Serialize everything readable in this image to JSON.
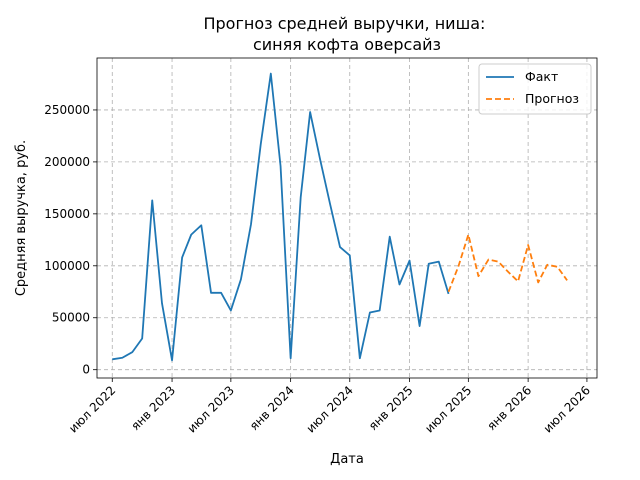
{
  "chart_data": {
    "type": "line",
    "title": "Прогноз средней выручки, ниша:\nсиняя кофта оверсайз",
    "title_lines": [
      "Прогноз средней выручки, ниша:",
      "синяя кофта оверсайз"
    ],
    "xlabel": "Дата",
    "ylabel": "Средняя выручка, руб.",
    "grid": true,
    "legend_position": "top-right",
    "xlim": [
      "2022-05-15",
      "2026-08-01"
    ],
    "ylim": [
      -8000,
      300000
    ],
    "x_ticks": [
      {
        "date": "2022-07-01",
        "label": "июл 2022"
      },
      {
        "date": "2023-01-01",
        "label": "янв 2023"
      },
      {
        "date": "2023-07-01",
        "label": "июл 2023"
      },
      {
        "date": "2024-01-01",
        "label": "янв 2024"
      },
      {
        "date": "2024-07-01",
        "label": "июл 2024"
      },
      {
        "date": "2025-01-01",
        "label": "янв 2025"
      },
      {
        "date": "2025-07-01",
        "label": "июл 2025"
      },
      {
        "date": "2026-01-01",
        "label": "янв 2026"
      },
      {
        "date": "2026-07-01",
        "label": "июл 2026"
      }
    ],
    "y_ticks": [
      0,
      50000,
      100000,
      150000,
      200000,
      250000
    ],
    "series": [
      {
        "name": "Факт",
        "color": "#1f77b4",
        "style": "solid",
        "points": [
          [
            "2022-07-01",
            10000
          ],
          [
            "2022-08-01",
            11500
          ],
          [
            "2022-09-01",
            17000
          ],
          [
            "2022-10-01",
            30000
          ],
          [
            "2022-11-01",
            163000
          ],
          [
            "2022-12-01",
            64000
          ],
          [
            "2023-01-01",
            9000
          ],
          [
            "2023-02-01",
            108000
          ],
          [
            "2023-03-01",
            130000
          ],
          [
            "2023-04-01",
            139000
          ],
          [
            "2023-05-01",
            74000
          ],
          [
            "2023-06-01",
            74000
          ],
          [
            "2023-07-01",
            57000
          ],
          [
            "2023-08-01",
            87000
          ],
          [
            "2023-09-01",
            140000
          ],
          [
            "2023-10-01",
            217000
          ],
          [
            "2023-11-01",
            285000
          ],
          [
            "2023-12-01",
            196000
          ],
          [
            "2024-01-01",
            11000
          ],
          [
            "2024-02-01",
            166000
          ],
          [
            "2024-03-01",
            248000
          ],
          [
            "2024-04-01",
            202000
          ],
          [
            "2024-05-01",
            160000
          ],
          [
            "2024-06-01",
            118000
          ],
          [
            "2024-07-01",
            110000
          ],
          [
            "2024-08-01",
            11000
          ],
          [
            "2024-09-01",
            55000
          ],
          [
            "2024-10-01",
            57000
          ],
          [
            "2024-11-01",
            128000
          ],
          [
            "2024-12-01",
            82000
          ],
          [
            "2025-01-01",
            105000
          ],
          [
            "2025-02-01",
            42000
          ],
          [
            "2025-03-01",
            102000
          ],
          [
            "2025-04-01",
            104000
          ],
          [
            "2025-05-01",
            73000
          ]
        ]
      },
      {
        "name": "Прогноз",
        "color": "#ff7f0e",
        "style": "dashed",
        "points": [
          [
            "2025-05-01",
            75000
          ],
          [
            "2025-06-01",
            100000
          ],
          [
            "2025-07-01",
            130000
          ],
          [
            "2025-08-01",
            90000
          ],
          [
            "2025-09-01",
            106000
          ],
          [
            "2025-10-01",
            104000
          ],
          [
            "2025-11-01",
            94000
          ],
          [
            "2025-12-01",
            85000
          ],
          [
            "2026-01-01",
            120000
          ],
          [
            "2026-02-01",
            84000
          ],
          [
            "2026-03-01",
            101000
          ],
          [
            "2026-04-01",
            99000
          ],
          [
            "2026-05-01",
            86000
          ]
        ]
      }
    ]
  }
}
